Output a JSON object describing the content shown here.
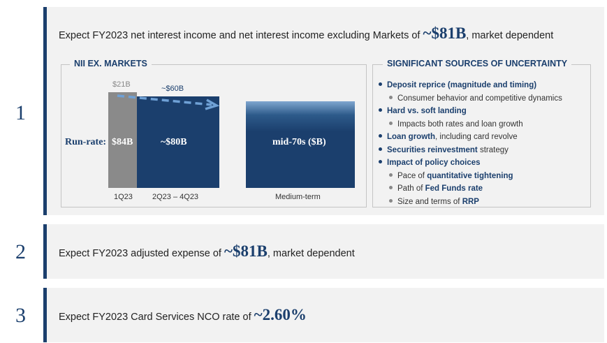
{
  "items": [
    {
      "number": "1",
      "pre": "Expect FY2023 net interest income and net interest income excluding Markets of ",
      "highlight": "~$81B",
      "post": ", market dependent"
    },
    {
      "number": "2",
      "pre": "Expect FY2023 adjusted expense of ",
      "highlight": "~$81B",
      "post": ", market dependent"
    },
    {
      "number": "3",
      "pre": "Expect FY2023 Card Services NCO rate of ",
      "highlight": "~2.60%",
      "post": ""
    }
  ],
  "nii": {
    "title": "NII EX. MARKETS",
    "run_rate_label": "Run-rate:",
    "bar_1q23": {
      "label": "$84B",
      "top_label": "$21B",
      "x_label": "1Q23",
      "color": "#8a8a8a"
    },
    "bar_rest": {
      "label": "~$80B",
      "top_label": "~$60B",
      "x_label": "2Q23 – 4Q23",
      "color": "#1b3f6d"
    },
    "bar_medium": {
      "label": "mid-70s ($B)",
      "x_label": "Medium-term",
      "color": "#1b3f6d"
    },
    "arrow_color": "#6fa1d6"
  },
  "uncertainty": {
    "title": "SIGNIFICANT SOURCES OF UNCERTAINTY",
    "lines": [
      {
        "level": 1,
        "bold": "Deposit reprice (magnitude and timing)",
        "rest": ""
      },
      {
        "level": 2,
        "pre": "Consumer behavior and competitive dynamics",
        "bold": "",
        "post": ""
      },
      {
        "level": 1,
        "bold": "Hard vs. soft landing",
        "rest": ""
      },
      {
        "level": 2,
        "pre": "Impacts both rates and loan growth",
        "bold": "",
        "post": ""
      },
      {
        "level": 1,
        "bold": "Loan growth",
        "rest": ", including card revolve"
      },
      {
        "level": 1,
        "bold": "Securities reinvestment",
        "rest": " strategy"
      },
      {
        "level": 1,
        "bold": "Impact of policy choices",
        "rest": ""
      },
      {
        "level": 2,
        "pre": "Pace of ",
        "bold": "quantitative tightening",
        "post": ""
      },
      {
        "level": 2,
        "pre": "Path of ",
        "bold": "Fed Funds rate",
        "post": ""
      },
      {
        "level": 2,
        "pre": "Size and terms of ",
        "bold": "RRP",
        "post": ""
      }
    ]
  }
}
